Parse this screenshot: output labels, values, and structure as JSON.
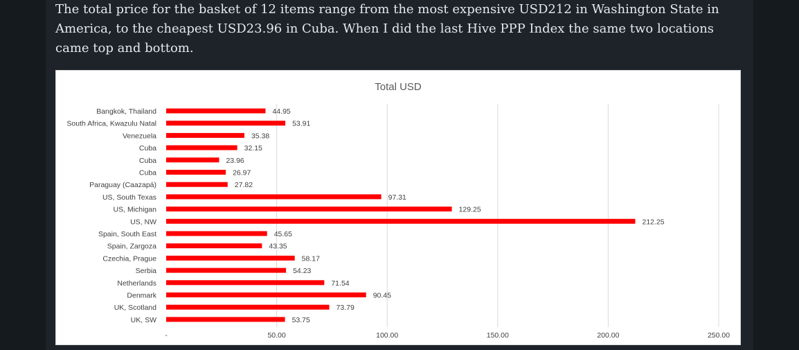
{
  "article": {
    "paragraph": "The total price for the basket of 12 items range from the most expensive USD212 in Washington State in America, to the cheapest USD23.96 in Cuba. When I did the last Hive PPP Index the same two locations came top and bottom."
  },
  "chart_data": {
    "type": "bar",
    "orientation": "horizontal",
    "title": "Total USD",
    "categories": [
      "Bangkok, Thailand",
      "South Africa, Kwazulu Natal",
      "Venezuela",
      "Cuba",
      "Cuba",
      "Cuba",
      "Paraguay (Caazapá)",
      "US, South Texas",
      "US, Michigan",
      "US, NW",
      "Spain, South East",
      "Spain, Zargoza",
      "Czechia, Prague",
      "Serbia",
      "Netherlands",
      "Denmark",
      "UK, Scotland",
      "UK, SW"
    ],
    "values": [
      44.95,
      53.91,
      35.38,
      32.15,
      23.96,
      26.97,
      27.82,
      97.31,
      129.25,
      212.25,
      45.65,
      43.35,
      58.17,
      54.23,
      71.54,
      90.45,
      73.79,
      53.75
    ],
    "data_labels": [
      "44.95",
      "53.91",
      "35.38",
      "32.15",
      "23.96",
      "26.97",
      "27.82",
      "97.31",
      "129.25",
      "212.25",
      "45.65",
      "43.35",
      "58.17",
      "54.23",
      "71.54",
      "90.45",
      "73.79",
      "53.75"
    ],
    "xlim": [
      0,
      250
    ],
    "xticks": [
      0,
      50,
      100,
      150,
      200,
      250
    ],
    "xtick_labels": [
      "-",
      "50.00",
      "100.00",
      "150.00",
      "200.00",
      "250.00"
    ],
    "bar_color": "#ff0000",
    "grid": true,
    "legend": "none"
  }
}
